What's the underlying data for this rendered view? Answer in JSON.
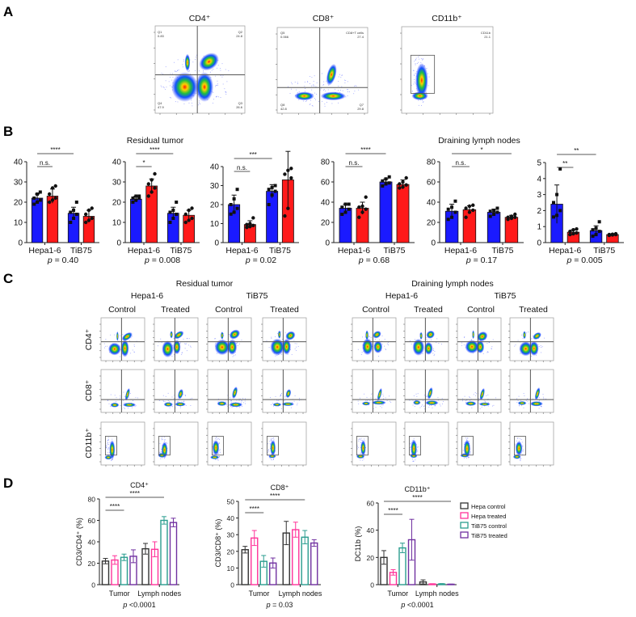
{
  "panels": {
    "a": "A",
    "b": "B",
    "c": "C",
    "d": "D"
  },
  "panel_a": {
    "plots": [
      {
        "title": "CD4⁺",
        "gates": [
          [
            "Q1",
            "0.83"
          ],
          [
            "Q2",
            "24.8"
          ],
          [
            "Q3",
            "26.6"
          ],
          [
            "Q4",
            "47.9"
          ]
        ]
      },
      {
        "title": "CD8⁺",
        "gates": [
          [
            "Q5",
            "0.066"
          ],
          [
            "CD8+T cells",
            "27.4"
          ],
          [
            "Q7",
            "29.8"
          ],
          [
            "Q8",
            "42.8"
          ]
        ]
      },
      {
        "title": "CD11b⁺",
        "gates": [
          [
            "CD11b",
            "21.1"
          ]
        ]
      }
    ]
  },
  "panel_b": {
    "group_titles": [
      "Residual tumor",
      "Draining lymph nodes"
    ]
  },
  "panel_c": {
    "groups": [
      {
        "title": "Residual tumor",
        "lines": [
          "Hepa1-6",
          "TiB75"
        ],
        "conditions": [
          "Control",
          "Treated",
          "Control",
          "Treated"
        ]
      },
      {
        "title": "Draining lymph nodes",
        "lines": [
          "Hepa1-6",
          "TiB75"
        ],
        "conditions": [
          "Control",
          "Treated",
          "Control",
          "Treated"
        ]
      }
    ],
    "rows": [
      "CD4⁺",
      "CD8⁺",
      "CD11b⁺"
    ]
  },
  "colors": {
    "control": "#1a1aff",
    "treated": "#ff1a1a",
    "hepa_control": "#333333",
    "hepa_treated": "#ff3399",
    "tib_control": "#2a9d8f",
    "tib_treated": "#7030a0"
  },
  "chart_data": [
    {
      "type": "bar",
      "panel": "B",
      "categories": [
        "Hepa1-6",
        "TiB75"
      ],
      "series": [
        {
          "name": "Control",
          "values": [
            22,
            14.5
          ],
          "err": [
            2,
            3
          ],
          "points": [
            [
              19,
              20,
              21,
              22,
              24,
              25
            ],
            [
              10,
              12,
              14,
              15,
              16,
              20
            ]
          ]
        },
        {
          "name": "Treated",
          "values": [
            23,
            13
          ],
          "err": [
            3.5,
            3
          ],
          "points": [
            [
              20,
              21,
              22,
              24,
              27,
              28
            ],
            [
              10,
              11,
              12,
              14,
              16,
              17
            ]
          ]
        }
      ],
      "ylim": [
        0,
        40
      ],
      "yticks": [
        0,
        10,
        20,
        30,
        40
      ],
      "sig": [
        {
          "from": 0,
          "to": 1,
          "label": "n.s."
        },
        {
          "from": 0,
          "to": 2,
          "label": "****"
        }
      ],
      "p": "= 0.40"
    },
    {
      "type": "bar",
      "panel": "B",
      "categories": [
        "Hepa1-6",
        "TiB75"
      ],
      "series": [
        {
          "name": "Control",
          "values": [
            21.5,
            14.5
          ],
          "err": [
            1.5,
            3
          ],
          "points": [
            [
              20,
              21,
              22,
              22,
              23,
              23
            ],
            [
              10,
              12,
              14,
              15,
              16,
              20
            ]
          ]
        },
        {
          "name": "Treated",
          "values": [
            28,
            13.5
          ],
          "err": [
            3.5,
            2.5
          ],
          "points": [
            [
              23,
              25,
              27,
              29,
              31,
              34
            ],
            [
              10,
              11,
              12,
              14,
              16,
              17
            ]
          ]
        }
      ],
      "ylim": [
        0,
        40
      ],
      "yticks": [
        0,
        10,
        20,
        30,
        40
      ],
      "sig": [
        {
          "from": 0,
          "to": 1,
          "label": "*"
        },
        {
          "from": 0,
          "to": 2,
          "label": "****"
        }
      ],
      "p": "= 0.008"
    },
    {
      "type": "bar",
      "panel": "B",
      "categories": [
        "Hepa1-6",
        "TiB75"
      ],
      "series": [
        {
          "name": "Control",
          "values": [
            20,
            27
          ],
          "err": [
            5,
            3.5
          ],
          "points": [
            [
              15,
              16,
              18,
              20,
              23,
              28
            ],
            [
              20,
              25,
              27,
              28,
              29,
              30
            ]
          ]
        },
        {
          "name": "Treated",
          "values": [
            9.5,
            33
          ],
          "err": [
            2,
            15
          ],
          "points": [
            [
              8,
              8.5,
              9,
              9.5,
              10,
              13
            ],
            [
              14,
              18,
              34,
              36,
              38,
              39
            ]
          ]
        }
      ],
      "ylim": [
        0,
        40
      ],
      "yticks": [
        0,
        10,
        20,
        30,
        40
      ],
      "sig": [
        {
          "from": 0,
          "to": 1,
          "label": "n.s."
        },
        {
          "from": 0,
          "to": 2,
          "label": "***"
        }
      ],
      "p": "= 0.02"
    },
    {
      "type": "bar",
      "panel": "B",
      "categories": [
        "Hepa1-6",
        "TiB75"
      ],
      "series": [
        {
          "name": "Control",
          "values": [
            34,
            60
          ],
          "err": [
            4,
            3
          ],
          "points": [
            [
              28,
              30,
              33,
              35,
              38,
              38
            ],
            [
              56,
              58,
              59,
              61,
              63,
              65
            ]
          ]
        },
        {
          "name": "Treated",
          "values": [
            34,
            57.5
          ],
          "err": [
            6,
            4.5
          ],
          "points": [
            [
              25,
              30,
              33,
              35,
              36,
              45
            ],
            [
              54,
              55,
              57,
              58,
              60,
              64
            ]
          ]
        }
      ],
      "ylim": [
        0,
        80
      ],
      "yticks": [
        0,
        20,
        40,
        60,
        80
      ],
      "sig": [
        {
          "from": 0,
          "to": 1,
          "label": "n.s."
        },
        {
          "from": 0,
          "to": 2,
          "label": "****"
        }
      ],
      "p": "= 0.68"
    },
    {
      "type": "bar",
      "panel": "B",
      "categories": [
        "Hepa1-6",
        "TiB75"
      ],
      "series": [
        {
          "name": "Control",
          "values": [
            31,
            30
          ],
          "err": [
            7,
            3
          ],
          "points": [
            [
              23,
              25,
              30,
              33,
              35,
              41
            ],
            [
              26,
              28,
              30,
              31,
              32,
              34
            ]
          ]
        },
        {
          "name": "Treated",
          "values": [
            32.5,
            25
          ],
          "err": [
            4,
            2
          ],
          "points": [
            [
              25,
              30,
              32,
              34,
              36,
              37
            ],
            [
              23,
              24,
              25,
              25,
              26,
              28
            ]
          ]
        }
      ],
      "ylim": [
        0,
        80
      ],
      "yticks": [
        0,
        20,
        40,
        60,
        80
      ],
      "sig": [
        {
          "from": 0,
          "to": 1,
          "label": "n.s."
        },
        {
          "from": 0,
          "to": 3,
          "label": "*"
        }
      ],
      "p": "= 0.17"
    },
    {
      "type": "bar",
      "panel": "B",
      "categories": [
        "Hepa1-6",
        "TiB75"
      ],
      "series": [
        {
          "name": "Control",
          "values": [
            2.4,
            0.75
          ],
          "err": [
            1.2,
            0.3
          ],
          "points": [
            [
              1.6,
              1.7,
              2,
              2.5,
              3,
              4.6
            ],
            [
              0.4,
              0.5,
              0.7,
              0.8,
              0.9,
              1.3
            ]
          ]
        },
        {
          "name": "Treated",
          "values": [
            0.65,
            0.5
          ],
          "err": [
            0.15,
            0.05
          ],
          "points": [
            [
              0.5,
              0.55,
              0.6,
              0.7,
              0.8,
              0.85
            ],
            [
              0.45,
              0.48,
              0.5,
              0.5,
              0.52,
              0.55
            ]
          ]
        }
      ],
      "ylim": [
        0,
        5
      ],
      "yticks": [
        0,
        1,
        2,
        3,
        4,
        5
      ],
      "sig": [
        {
          "from": 0,
          "to": 1,
          "label": "**"
        },
        {
          "from": 0,
          "to": 2,
          "label": "**"
        }
      ],
      "p": "= 0.005"
    },
    {
      "type": "bar",
      "panel": "D",
      "title": "CD4⁺",
      "ylabel": "CD3/CD4⁺ (%)",
      "categories": [
        "Tumor",
        "Lymph nodes"
      ],
      "series": [
        {
          "name": "Hepa control",
          "values": [
            22,
            33.5
          ],
          "err": [
            2.5,
            5
          ]
        },
        {
          "name": "Hepa treated",
          "values": [
            23,
            33
          ],
          "err": [
            4,
            7
          ]
        },
        {
          "name": "TiB75 control",
          "values": [
            25.5,
            60
          ],
          "err": [
            3,
            3.5
          ]
        },
        {
          "name": "TiB75 treated",
          "values": [
            26.5,
            58
          ],
          "err": [
            6,
            4
          ]
        }
      ],
      "ylim": [
        0,
        80
      ],
      "yticks": [
        0,
        20,
        40,
        60,
        80
      ],
      "sig": [
        {
          "from": 0,
          "to": 2,
          "label": "****"
        },
        {
          "from": 0,
          "to": 6,
          "label": "****"
        }
      ],
      "p": "<0.0001"
    },
    {
      "type": "bar",
      "panel": "D",
      "title": "CD8⁺",
      "ylabel": "CD3/CD8⁺ (%)",
      "categories": [
        "Tumor",
        "Lymph nodes"
      ],
      "series": [
        {
          "name": "Hepa control",
          "values": [
            21,
            31
          ],
          "err": [
            2,
            7
          ]
        },
        {
          "name": "Hepa treated",
          "values": [
            28,
            33
          ],
          "err": [
            4.5,
            4.5
          ]
        },
        {
          "name": "TiB75 control",
          "values": [
            14,
            28.5
          ],
          "err": [
            3.5,
            4
          ]
        },
        {
          "name": "TiB75 treated",
          "values": [
            13,
            25
          ],
          "err": [
            3,
            2
          ]
        }
      ],
      "ylim": [
        0,
        50
      ],
      "yticks": [
        0,
        10,
        20,
        30,
        40,
        50
      ],
      "sig": [
        {
          "from": 0,
          "to": 2,
          "label": "****"
        },
        {
          "from": 0,
          "to": 6,
          "label": "****"
        }
      ],
      "p": "= 0.03"
    },
    {
      "type": "bar",
      "panel": "D",
      "title": "CD11b⁺",
      "ylabel": "DC11b (%)",
      "categories": [
        "Tumor",
        "Lymph nodes"
      ],
      "series": [
        {
          "name": "Hepa control",
          "values": [
            20,
            2
          ],
          "err": [
            5,
            1.5
          ]
        },
        {
          "name": "Hepa treated",
          "values": [
            9,
            0.5
          ],
          "err": [
            2,
            0.2
          ]
        },
        {
          "name": "TiB75 control",
          "values": [
            27,
            0.5
          ],
          "err": [
            3.5,
            0.3
          ]
        },
        {
          "name": "TiB75 treated",
          "values": [
            33,
            0.3
          ],
          "err": [
            15,
            0.1
          ]
        }
      ],
      "ylim": [
        0,
        60
      ],
      "yticks": [
        0,
        20,
        40,
        60
      ],
      "sig": [
        {
          "from": 0,
          "to": 2,
          "label": "****"
        },
        {
          "from": 0,
          "to": 7,
          "label": "****"
        }
      ],
      "p": "<0.0001",
      "legend": "right"
    }
  ]
}
